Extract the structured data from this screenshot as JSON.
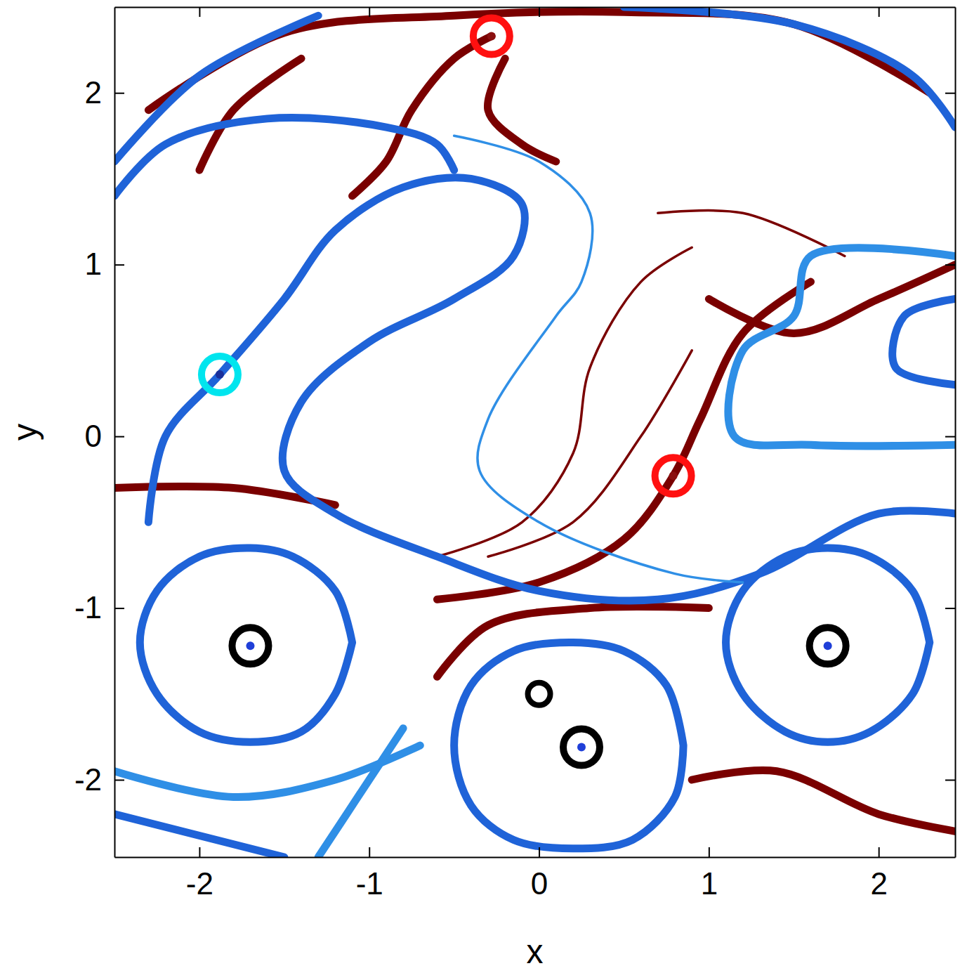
{
  "chart_data": {
    "type": "line",
    "x_label": "x",
    "y_label": "y",
    "xlim": [
      -2.5,
      2.45
    ],
    "ylim": [
      -2.45,
      2.5
    ],
    "xticks": [
      -2,
      -1,
      0,
      1,
      2
    ],
    "yticks": [
      -2,
      -1,
      0,
      1,
      2
    ],
    "grid": false,
    "series": [
      {
        "color": "#7a0000",
        "line_style": "thick",
        "x": [
          -2.3,
          -1.5,
          -0.5,
          0.5,
          1.5,
          2.3
        ],
        "y": [
          1.9,
          2.35,
          2.45,
          2.47,
          2.4,
          2.0
        ]
      },
      {
        "color": "#7a0000",
        "line_style": "thick",
        "x": [
          -0.28,
          -0.5,
          -0.75,
          -0.9,
          -1.1
        ],
        "y": [
          2.33,
          2.2,
          1.9,
          1.6,
          1.4
        ]
      },
      {
        "color": "#7a0000",
        "line_style": "thick",
        "x": [
          -0.2,
          -0.3,
          -0.1,
          0.1
        ],
        "y": [
          2.2,
          1.9,
          1.7,
          1.6
        ]
      },
      {
        "color": "#7a0000",
        "line_style": "thick",
        "x": [
          -2.0,
          -1.8,
          -1.4
        ],
        "y": [
          1.55,
          1.9,
          2.2
        ]
      },
      {
        "color": "#7a0000",
        "line_style": "thin",
        "x": [
          0.7,
          1.2,
          1.8
        ],
        "y": [
          1.3,
          1.3,
          1.05
        ]
      },
      {
        "color": "#7a0000",
        "line_style": "thin",
        "x": [
          0.9,
          0.6,
          0.3,
          0.2,
          -0.1,
          -0.6
        ],
        "y": [
          1.1,
          0.9,
          0.4,
          -0.1,
          -0.5,
          -0.7
        ]
      },
      {
        "color": "#7a0000",
        "line_style": "thick",
        "x": [
          1.6,
          1.2,
          0.95,
          0.79,
          0.5,
          0.0,
          -0.6
        ],
        "y": [
          0.9,
          0.6,
          0.1,
          -0.23,
          -0.6,
          -0.85,
          -0.95
        ]
      },
      {
        "color": "#7a0000",
        "line_style": "thin",
        "x": [
          0.9,
          0.6,
          0.2,
          -0.3
        ],
        "y": [
          0.5,
          0.0,
          -0.5,
          -0.7
        ]
      },
      {
        "color": "#7a0000",
        "line_style": "thick",
        "x": [
          -2.5,
          -1.8,
          -1.2
        ],
        "y": [
          -0.3,
          -0.3,
          -0.4
        ]
      },
      {
        "color": "#7a0000",
        "line_style": "thick",
        "x": [
          -0.6,
          -0.3,
          0.3,
          1.0
        ],
        "y": [
          -1.4,
          -1.1,
          -1.0,
          -1.0
        ]
      },
      {
        "color": "#7a0000",
        "line_style": "thick",
        "x": [
          1.0,
          1.5,
          2.0,
          2.45
        ],
        "y": [
          0.8,
          0.6,
          0.8,
          1.0
        ]
      },
      {
        "color": "#7a0000",
        "line_style": "thick",
        "x": [
          0.9,
          1.4,
          2.0,
          2.45
        ],
        "y": [
          -2.0,
          -1.95,
          -2.2,
          -2.3
        ]
      },
      {
        "color": "#1f63d8",
        "line_style": "thick",
        "x": [
          -2.3,
          -2.2,
          -1.88,
          -1.5,
          -1.2,
          -0.8,
          -0.4,
          -0.1,
          -0.15,
          -0.5,
          -1.0,
          -1.4,
          -1.5,
          -1.2,
          -0.6,
          0.0,
          0.7,
          1.3,
          2.0,
          2.45
        ],
        "y": [
          -0.5,
          0.0,
          0.36,
          0.8,
          1.2,
          1.45,
          1.5,
          1.35,
          1.05,
          0.8,
          0.55,
          0.2,
          -0.2,
          -0.45,
          -0.7,
          -0.9,
          -0.95,
          -0.8,
          -0.45,
          -0.45
        ]
      },
      {
        "color": "#2f8fe6",
        "line_style": "thin",
        "x": [
          -0.5,
          0.0,
          0.3,
          0.25,
          0.1,
          -0.3,
          -0.35,
          0.0,
          0.8,
          1.2
        ],
        "y": [
          1.75,
          1.6,
          1.3,
          0.9,
          0.7,
          0.1,
          -0.2,
          -0.5,
          -0.8,
          -0.85
        ]
      },
      {
        "color": "#1f63d8",
        "line_style": "thick",
        "x": [
          -2.5,
          -2.2,
          -1.6,
          -0.9,
          -0.6,
          -0.5
        ],
        "y": [
          1.4,
          1.7,
          1.85,
          1.8,
          1.7,
          1.55
        ]
      },
      {
        "color": "#1f63d8",
        "line_style": "thick",
        "x": [
          -2.5,
          -2.0,
          -1.3
        ],
        "y": [
          1.6,
          2.1,
          2.45
        ]
      },
      {
        "color": "#1f63d8",
        "line_style": "thick",
        "x": [
          0.5,
          1.5,
          2.2,
          2.45
        ],
        "y": [
          2.5,
          2.4,
          2.1,
          1.8
        ]
      },
      {
        "color": "#2f8fe6",
        "line_style": "thick",
        "x": [
          2.45,
          1.6,
          1.5,
          1.2,
          1.15,
          1.6,
          2.45
        ],
        "y": [
          1.05,
          1.05,
          0.7,
          0.5,
          0.0,
          -0.05,
          -0.05
        ]
      },
      {
        "color": "#1f63d8",
        "line_style": "thick",
        "x": [
          2.45,
          2.15,
          2.1,
          2.45
        ],
        "y": [
          0.8,
          0.7,
          0.4,
          0.3
        ]
      },
      {
        "color": "#1f63d8",
        "line_style": "thick",
        "x": [
          -1.1,
          -1.2,
          -1.45,
          -1.7,
          -2.0,
          -2.25,
          -2.35,
          -2.25,
          -2.0,
          -1.7,
          -1.4,
          -1.2,
          -1.1
        ],
        "y": [
          -1.2,
          -0.9,
          -0.7,
          -0.65,
          -0.7,
          -0.9,
          -1.2,
          -1.5,
          -1.72,
          -1.78,
          -1.72,
          -1.5,
          -1.2
        ]
      },
      {
        "color": "#1f63d8",
        "line_style": "thick",
        "x": [
          2.3,
          2.2,
          1.95,
          1.7,
          1.45,
          1.2,
          1.1,
          1.2,
          1.45,
          1.7,
          1.95,
          2.2,
          2.3
        ],
        "y": [
          -1.2,
          -0.9,
          -0.7,
          -0.65,
          -0.7,
          -0.9,
          -1.2,
          -1.5,
          -1.72,
          -1.78,
          -1.72,
          -1.5,
          -1.2
        ]
      },
      {
        "color": "#1f63d8",
        "line_style": "thick",
        "x": [
          0.85,
          0.75,
          0.5,
          0.2,
          -0.15,
          -0.4,
          -0.5,
          -0.4,
          -0.15,
          0.2,
          0.55,
          0.8,
          0.85
        ],
        "y": [
          -1.8,
          -1.45,
          -1.25,
          -1.2,
          -1.25,
          -1.45,
          -1.8,
          -2.15,
          -2.35,
          -2.4,
          -2.35,
          -2.1,
          -1.8
        ]
      },
      {
        "color": "#2f8fe6",
        "line_style": "thick",
        "x": [
          -2.5,
          -1.8,
          -1.2,
          -0.7
        ],
        "y": [
          -1.95,
          -2.1,
          -2.0,
          -1.8
        ]
      },
      {
        "color": "#1f63d8",
        "line_style": "thick",
        "x": [
          -2.5,
          -1.5
        ],
        "y": [
          -2.2,
          -2.45
        ]
      },
      {
        "color": "#2f8fe6",
        "line_style": "thick",
        "x": [
          -1.3,
          -1.0,
          -0.8
        ],
        "y": [
          -2.45,
          -2.0,
          -1.7
        ]
      },
      {
        "type": "scatter",
        "marker": "ring",
        "color": "#ff1010",
        "x": [
          -0.28,
          0.79
        ],
        "y": [
          2.33,
          -0.23
        ]
      },
      {
        "type": "scatter",
        "marker": "ring",
        "color": "#00e5ee",
        "x": [
          -1.88
        ],
        "y": [
          0.36
        ]
      },
      {
        "type": "scatter",
        "marker": "ring",
        "color": "#000000",
        "x": [
          -1.7,
          1.7,
          0.25
        ],
        "y": [
          -1.22,
          -1.22,
          -1.81
        ]
      },
      {
        "type": "scatter",
        "marker": "small-ring",
        "color": "#000000",
        "x": [
          0.0
        ],
        "y": [
          -1.5
        ]
      }
    ]
  }
}
